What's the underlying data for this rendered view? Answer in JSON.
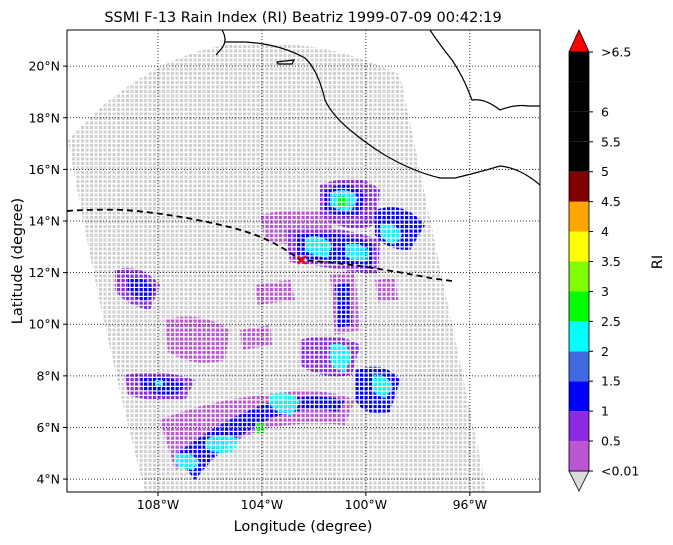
{
  "figure": {
    "title": "SSMI F-13 Rain Index (RI) Beatriz 1999-07-09 00:42:19",
    "xlabel": "Longitude (degree)",
    "ylabel": "Latitude (degree)",
    "colorbar_label": "RI"
  },
  "map": {
    "lon_range": [
      -111.5,
      -93.3
    ],
    "lat_range": [
      3.5,
      21.4
    ],
    "lon_ticks": [
      {
        "value": -108,
        "label": "108°W"
      },
      {
        "value": -104,
        "label": "104°W"
      },
      {
        "value": -100,
        "label": "100°W"
      },
      {
        "value": -96,
        "label": "96°W"
      }
    ],
    "lat_ticks": [
      {
        "value": 4,
        "label": "4°N"
      },
      {
        "value": 6,
        "label": "6°N"
      },
      {
        "value": 8,
        "label": "8°N"
      },
      {
        "value": 10,
        "label": "10°N"
      },
      {
        "value": 12,
        "label": "12°N"
      },
      {
        "value": 14,
        "label": "14°N"
      },
      {
        "value": 16,
        "label": "16°N"
      },
      {
        "value": 18,
        "label": "18°N"
      },
      {
        "value": 20,
        "label": "20°N"
      }
    ],
    "grid": "dotted",
    "swath_color": "#d3d3d3",
    "track_line": "dashed black",
    "storm_marker_color": "#ff0000"
  },
  "colorbar": {
    "bins": [
      {
        "label": "<0.01",
        "color": "#ba55d3"
      },
      {
        "label": "0.5",
        "color": "#8a2be2"
      },
      {
        "label": "1",
        "color": "#0000ff"
      },
      {
        "label": "1.5",
        "color": "#4169e1"
      },
      {
        "label": "2",
        "color": "#00ffff"
      },
      {
        "label": "2.5",
        "color": "#00ff00"
      },
      {
        "label": "3",
        "color": "#7fff00"
      },
      {
        "label": "3.5",
        "color": "#ffff00"
      },
      {
        "label": "4",
        "color": "#ffa500"
      },
      {
        "label": "4.5",
        "color": "#800000"
      },
      {
        "label": "5",
        "color": "#000000"
      },
      {
        "label": "5.5",
        "color": "#000000"
      },
      {
        "label": "6",
        "color": "#000000"
      },
      {
        "label": ">6.5",
        "color": "#000000"
      }
    ],
    "under_color": "#dcdcdc",
    "over_color": "#ff0000"
  }
}
